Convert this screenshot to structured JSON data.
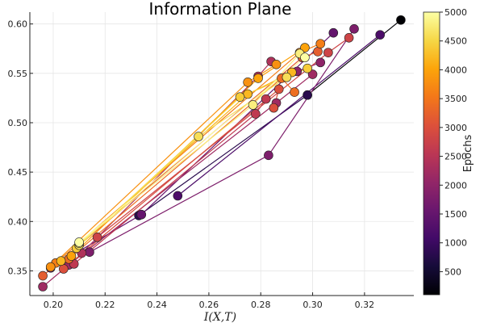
{
  "chart_data": {
    "type": "scatter",
    "title": "Information Plane",
    "xlabel": "I(X,T)",
    "ylabel": "",
    "xlim": [
      0.191,
      0.339
    ],
    "ylim": [
      0.325,
      0.612
    ],
    "xticks": [
      0.2,
      0.22,
      0.24,
      0.26,
      0.28,
      0.3,
      0.32
    ],
    "xtick_labels": [
      "0.20",
      "0.22",
      "0.24",
      "0.26",
      "0.28",
      "0.30",
      "0.32"
    ],
    "yticks": [
      0.35,
      0.4,
      0.45,
      0.5,
      0.55,
      0.6
    ],
    "ytick_labels": [
      "0.35",
      "0.40",
      "0.45",
      "0.50",
      "0.55",
      "0.60"
    ],
    "grid": true,
    "legend": "none",
    "colorbar": {
      "label": "Epochs",
      "min": 100,
      "max": 5000,
      "ticks": [
        500,
        1000,
        1500,
        2000,
        2500,
        3000,
        3500,
        4000,
        4500,
        5000
      ],
      "tick_labels": [
        "500",
        "1000",
        "1500",
        "2000",
        "2500",
        "3000",
        "3500",
        "4000",
        "4500",
        "5000"
      ],
      "colormap": "inferno"
    },
    "series": [
      {
        "epoch": 100,
        "x": [
          0.334,
          0.298
        ],
        "y": [
          0.604,
          0.528
        ]
      },
      {
        "epoch": 800,
        "x": [
          0.298,
          0.233
        ],
        "y": [
          0.528,
          0.406
        ]
      },
      {
        "epoch": 1200,
        "x": [
          0.326,
          0.248
        ],
        "y": [
          0.589,
          0.426
        ]
      },
      {
        "epoch": 1500,
        "x": [
          0.308,
          0.234,
          0.199
        ],
        "y": [
          0.591,
          0.407,
          0.353
        ]
      },
      {
        "epoch": 1800,
        "x": [
          0.316,
          0.283,
          0.214
        ],
        "y": [
          0.595,
          0.467,
          0.369
        ]
      },
      {
        "epoch": 2000,
        "x": [
          0.303,
          0.294
        ],
        "y": [
          0.561,
          0.552
        ]
      },
      {
        "epoch": 2200,
        "x": [
          0.3,
          0.286,
          0.206,
          0.196
        ],
        "y": [
          0.549,
          0.52,
          0.356,
          0.334
        ]
      },
      {
        "epoch": 2400,
        "x": [
          0.284,
          0.279,
          0.211
        ],
        "y": [
          0.562,
          0.547,
          0.368
        ]
      },
      {
        "epoch": 2600,
        "x": [
          0.282,
          0.278,
          0.208
        ],
        "y": [
          0.524,
          0.509,
          0.357
        ]
      },
      {
        "epoch": 2800,
        "x": [
          0.314,
          0.306,
          0.217
        ],
        "y": [
          0.586,
          0.571,
          0.384
        ]
      },
      {
        "epoch": 3000,
        "x": [
          0.285,
          0.287,
          0.204
        ],
        "y": [
          0.515,
          0.534,
          0.352
        ]
      },
      {
        "epoch": 3200,
        "x": [
          0.302,
          0.296,
          0.196
        ],
        "y": [
          0.572,
          0.566,
          0.345
        ]
      },
      {
        "epoch": 3400,
        "x": [
          0.293,
          0.288,
          0.206
        ],
        "y": [
          0.531,
          0.545,
          0.362
        ]
      },
      {
        "epoch": 3600,
        "x": [
          0.303,
          0.295,
          0.201
        ],
        "y": [
          0.58,
          0.571,
          0.358
        ]
      },
      {
        "epoch": 3800,
        "x": [
          0.286,
          0.275,
          0.199
        ],
        "y": [
          0.559,
          0.541,
          0.354
        ]
      },
      {
        "epoch": 4000,
        "x": [
          0.297,
          0.279,
          0.207
        ],
        "y": [
          0.576,
          0.545,
          0.365
        ]
      },
      {
        "epoch": 4200,
        "x": [
          0.292,
          0.275,
          0.203
        ],
        "y": [
          0.551,
          0.529,
          0.36
        ]
      },
      {
        "epoch": 4400,
        "x": [
          0.298,
          0.272,
          0.209
        ],
        "y": [
          0.555,
          0.526,
          0.373
        ]
      },
      {
        "epoch": 4600,
        "x": [
          0.29,
          0.256,
          0.21
        ],
        "y": [
          0.546,
          0.486,
          0.376
        ]
      },
      {
        "epoch": 4800,
        "x": [
          0.295,
          0.277,
          0.21
        ],
        "y": [
          0.57,
          0.518,
          0.378
        ]
      },
      {
        "epoch": 5000,
        "x": [
          0.297,
          0.21
        ],
        "y": [
          0.566,
          0.379
        ]
      }
    ]
  }
}
